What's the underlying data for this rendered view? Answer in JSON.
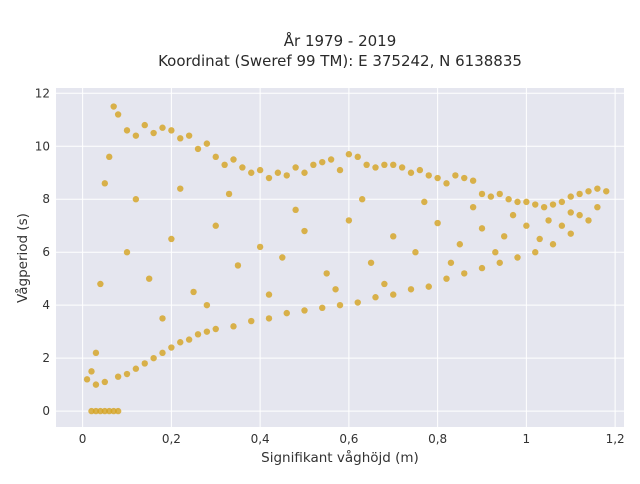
{
  "title_line1": "År 1979 - 2019",
  "title_line2": "Koordinat (Sweref 99 TM): E 375242, N 6138835",
  "xlabel": "Signifikant våghöjd (m)",
  "ylabel": "Vågperiod (s)",
  "colors": {
    "marker": "#d4a21f",
    "plot_bg": "#e5e6ef",
    "grid": "#ffffff"
  },
  "chart_data": {
    "type": "scatter",
    "title": "År 1979 - 2019\nKoordinat (Sweref 99 TM): E 375242, N 6138835",
    "xlabel": "Signifikant våghöjd (m)",
    "ylabel": "Vågperiod (s)",
    "xlim": [
      -0.06,
      1.22
    ],
    "ylim": [
      -0.6,
      12.2
    ],
    "grid": true,
    "x_ticks": [
      0,
      0.2,
      0.4,
      0.6,
      0.8,
      1,
      1.2
    ],
    "x_tick_labels": [
      "0",
      "0,2",
      "0,4",
      "0,6",
      "0,8",
      "1",
      "1,2"
    ],
    "y_ticks": [
      0,
      2,
      4,
      6,
      8,
      10,
      12
    ],
    "y_tick_labels": [
      "0",
      "2",
      "4",
      "6",
      "8",
      "10",
      "12"
    ],
    "series": [
      {
        "color": "#d4a21f",
        "points": [
          [
            0.02,
            1.5
          ],
          [
            0.03,
            2.2
          ],
          [
            0.04,
            4.8
          ],
          [
            0.05,
            8.6
          ],
          [
            0.06,
            9.6
          ],
          [
            0.07,
            11.5
          ],
          [
            0.08,
            11.2
          ],
          [
            0.1,
            10.6
          ],
          [
            0.12,
            10.4
          ],
          [
            0.14,
            10.8
          ],
          [
            0.16,
            10.5
          ],
          [
            0.18,
            10.7
          ],
          [
            0.2,
            10.6
          ],
          [
            0.22,
            10.3
          ],
          [
            0.24,
            10.4
          ],
          [
            0.26,
            9.9
          ],
          [
            0.28,
            10.1
          ],
          [
            0.3,
            9.6
          ],
          [
            0.32,
            9.3
          ],
          [
            0.34,
            9.5
          ],
          [
            0.36,
            9.2
          ],
          [
            0.38,
            9.0
          ],
          [
            0.4,
            9.1
          ],
          [
            0.42,
            8.8
          ],
          [
            0.44,
            9.0
          ],
          [
            0.46,
            8.9
          ],
          [
            0.48,
            9.2
          ],
          [
            0.5,
            9.0
          ],
          [
            0.52,
            9.3
          ],
          [
            0.54,
            9.4
          ],
          [
            0.56,
            9.5
          ],
          [
            0.58,
            9.1
          ],
          [
            0.6,
            9.7
          ],
          [
            0.62,
            9.6
          ],
          [
            0.64,
            9.3
          ],
          [
            0.66,
            9.2
          ],
          [
            0.68,
            9.3
          ],
          [
            0.7,
            9.3
          ],
          [
            0.72,
            9.2
          ],
          [
            0.74,
            9.0
          ],
          [
            0.76,
            9.1
          ],
          [
            0.78,
            8.9
          ],
          [
            0.8,
            8.8
          ],
          [
            0.82,
            8.6
          ],
          [
            0.84,
            8.9
          ],
          [
            0.86,
            8.8
          ],
          [
            0.88,
            8.7
          ],
          [
            0.9,
            8.2
          ],
          [
            0.92,
            8.1
          ],
          [
            0.94,
            8.2
          ],
          [
            0.96,
            8.0
          ],
          [
            0.98,
            7.9
          ],
          [
            1.0,
            7.9
          ],
          [
            1.02,
            7.8
          ],
          [
            1.04,
            7.7
          ],
          [
            1.06,
            7.8
          ],
          [
            1.08,
            7.9
          ],
          [
            1.1,
            8.1
          ],
          [
            1.12,
            8.2
          ],
          [
            1.14,
            8.3
          ],
          [
            1.16,
            8.4
          ],
          [
            1.18,
            8.3
          ],
          [
            0.01,
            1.2
          ],
          [
            0.03,
            1.0
          ],
          [
            0.05,
            1.1
          ],
          [
            0.08,
            1.3
          ],
          [
            0.1,
            1.4
          ],
          [
            0.12,
            1.6
          ],
          [
            0.14,
            1.8
          ],
          [
            0.16,
            2.0
          ],
          [
            0.18,
            2.2
          ],
          [
            0.2,
            2.4
          ],
          [
            0.22,
            2.6
          ],
          [
            0.24,
            2.7
          ],
          [
            0.26,
            2.9
          ],
          [
            0.28,
            3.0
          ],
          [
            0.3,
            3.1
          ],
          [
            0.34,
            3.2
          ],
          [
            0.38,
            3.4
          ],
          [
            0.42,
            3.5
          ],
          [
            0.46,
            3.7
          ],
          [
            0.5,
            3.8
          ],
          [
            0.54,
            3.9
          ],
          [
            0.58,
            4.0
          ],
          [
            0.62,
            4.1
          ],
          [
            0.66,
            4.3
          ],
          [
            0.7,
            4.4
          ],
          [
            0.74,
            4.6
          ],
          [
            0.78,
            4.7
          ],
          [
            0.82,
            5.0
          ],
          [
            0.86,
            5.2
          ],
          [
            0.9,
            5.4
          ],
          [
            0.94,
            5.6
          ],
          [
            0.98,
            5.8
          ],
          [
            1.02,
            6.0
          ],
          [
            1.06,
            6.3
          ],
          [
            1.1,
            6.7
          ],
          [
            1.14,
            7.2
          ],
          [
            1.16,
            7.7
          ],
          [
            0.02,
            0.0
          ],
          [
            0.03,
            0.0
          ],
          [
            0.04,
            0.0
          ],
          [
            0.05,
            0.0
          ],
          [
            0.06,
            0.0
          ],
          [
            0.07,
            0.0
          ],
          [
            0.08,
            0.0
          ],
          [
            0.1,
            6.0
          ],
          [
            0.15,
            5.0
          ],
          [
            0.2,
            6.5
          ],
          [
            0.25,
            4.5
          ],
          [
            0.3,
            7.0
          ],
          [
            0.35,
            5.5
          ],
          [
            0.4,
            6.2
          ],
          [
            0.45,
            5.8
          ],
          [
            0.5,
            6.8
          ],
          [
            0.55,
            5.2
          ],
          [
            0.6,
            7.2
          ],
          [
            0.65,
            5.6
          ],
          [
            0.7,
            6.6
          ],
          [
            0.75,
            6.0
          ],
          [
            0.8,
            7.1
          ],
          [
            0.85,
            6.3
          ],
          [
            0.9,
            6.9
          ],
          [
            0.95,
            6.6
          ],
          [
            1.0,
            7.0
          ],
          [
            1.05,
            7.2
          ],
          [
            1.1,
            7.5
          ],
          [
            0.12,
            8.0
          ],
          [
            0.18,
            3.5
          ],
          [
            0.22,
            8.4
          ],
          [
            0.28,
            4.0
          ],
          [
            0.33,
            8.2
          ],
          [
            0.42,
            4.4
          ],
          [
            0.48,
            7.6
          ],
          [
            0.57,
            4.6
          ],
          [
            0.63,
            8.0
          ],
          [
            0.68,
            4.8
          ],
          [
            0.77,
            7.9
          ],
          [
            0.83,
            5.6
          ],
          [
            0.88,
            7.7
          ],
          [
            0.93,
            6.0
          ],
          [
            0.97,
            7.4
          ],
          [
            1.03,
            6.5
          ],
          [
            1.08,
            7.0
          ],
          [
            1.12,
            7.4
          ]
        ]
      }
    ]
  }
}
